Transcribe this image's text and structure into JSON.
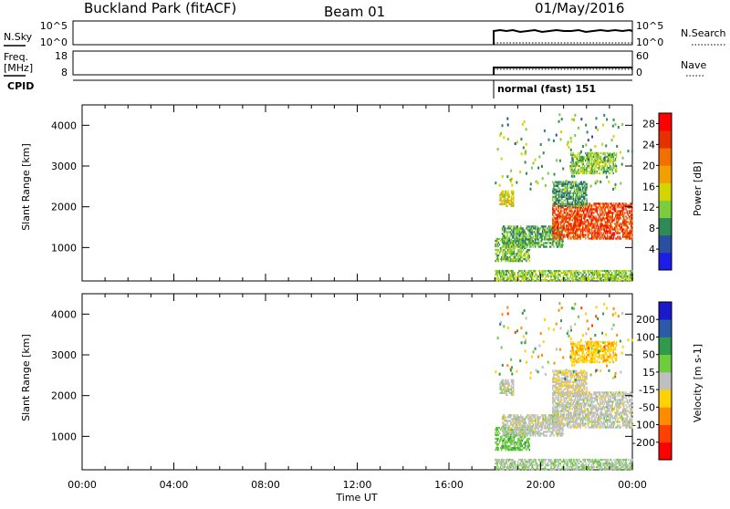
{
  "header": {
    "station": "Buckland Park (fitACF)",
    "beam": "Beam 01",
    "date": "01/May/2016"
  },
  "summary": {
    "nsky_label": "N.Sky",
    "nsky_ticks": [
      "10^5",
      "10^0"
    ],
    "nsearch_label": "N.Search",
    "freq_label_1": "Freq.",
    "freq_label_2": "[MHz]",
    "freq_ticks": [
      "18",
      "8"
    ],
    "nave_ticks": [
      "60",
      "0"
    ],
    "nave_label": "Nave",
    "cpid_label": "CPID",
    "cpid_value": "normal (fast) 151"
  },
  "axes": {
    "ylabel": "Slant Range [km]",
    "xlabel": "Time UT",
    "xticks": [
      "00:00",
      "04:00",
      "08:00",
      "12:00",
      "16:00",
      "20:00",
      "00:00"
    ],
    "yticks": [
      "1000",
      "2000",
      "3000",
      "4000"
    ]
  },
  "colors": {
    "power": [
      "#1d1de8",
      "#2a4fa0",
      "#2e8b57",
      "#7ccd3c",
      "#d4d400",
      "#f2a000",
      "#f07000",
      "#e63000",
      "#ff0000"
    ],
    "velocity": [
      "#ff0000",
      "#ff4000",
      "#ff8c00",
      "#ffd100",
      "#bfbfbf",
      "#6ccc3c",
      "#2e9a4a",
      "#2b5aa8",
      "#1a1acb"
    ]
  },
  "chart_data": [
    {
      "type": "heatmap",
      "title": "",
      "xlabel": "Time UT",
      "ylabel": "Slant Range [km]",
      "xlim": [
        0,
        24
      ],
      "ylim": [
        180,
        4500
      ],
      "xticks": [
        "00:00",
        "04:00",
        "08:00",
        "12:00",
        "16:00",
        "20:00",
        "00:00"
      ],
      "yticks": [
        1000,
        2000,
        3000,
        4000
      ],
      "colorbar": {
        "label": "Power [dB]",
        "ticks": [
          4,
          8,
          12,
          16,
          20,
          24,
          28
        ],
        "range": [
          0,
          30
        ]
      },
      "echo_regions": [
        {
          "t_start": 18.0,
          "t_end": 24.0,
          "range_min": 180,
          "range_max": 420,
          "value": 12
        },
        {
          "t_start": 18.0,
          "t_end": 19.5,
          "range_min": 650,
          "range_max": 1200,
          "value": 11
        },
        {
          "t_start": 18.3,
          "t_end": 21.0,
          "range_min": 1000,
          "range_max": 1500,
          "value": 10
        },
        {
          "t_start": 18.2,
          "t_end": 18.8,
          "range_min": 2000,
          "range_max": 2400,
          "value": 15
        },
        {
          "t_start": 20.5,
          "t_end": 24.0,
          "range_min": 1200,
          "range_max": 2100,
          "value": 24
        },
        {
          "t_start": 21.3,
          "t_end": 23.3,
          "range_min": 2800,
          "range_max": 3300,
          "value": 12
        },
        {
          "t_start": 20.5,
          "t_end": 22.0,
          "range_min": 2000,
          "range_max": 2600,
          "value": 9
        }
      ]
    },
    {
      "type": "heatmap",
      "title": "",
      "xlabel": "Time UT",
      "ylabel": "Slant Range [km]",
      "xlim": [
        0,
        24
      ],
      "ylim": [
        180,
        4500
      ],
      "xticks": [
        "00:00",
        "04:00",
        "08:00",
        "12:00",
        "16:00",
        "20:00",
        "00:00"
      ],
      "yticks": [
        1000,
        2000,
        3000,
        4000
      ],
      "colorbar": {
        "label": "Velocity [m s-1]",
        "ticks": [
          -200,
          -100,
          -50,
          -15,
          15,
          50,
          100,
          200
        ],
        "range": [
          -250,
          250
        ]
      },
      "echo_regions": [
        {
          "t_start": 18.0,
          "t_end": 24.0,
          "range_min": 180,
          "range_max": 420,
          "value": 20
        },
        {
          "t_start": 18.0,
          "t_end": 19.5,
          "range_min": 650,
          "range_max": 1200,
          "value": 60
        },
        {
          "t_start": 18.3,
          "t_end": 21.0,
          "range_min": 1000,
          "range_max": 1500,
          "value": 0
        },
        {
          "t_start": 18.2,
          "t_end": 18.8,
          "range_min": 2000,
          "range_max": 2400,
          "value": 0
        },
        {
          "t_start": 20.5,
          "t_end": 24.0,
          "range_min": 1200,
          "range_max": 2100,
          "value": 0
        },
        {
          "t_start": 21.3,
          "t_end": 23.3,
          "range_min": 2800,
          "range_max": 3300,
          "value": -60
        },
        {
          "t_start": 20.5,
          "t_end": 22.0,
          "range_min": 2000,
          "range_max": 2600,
          "value": -20
        }
      ]
    }
  ]
}
